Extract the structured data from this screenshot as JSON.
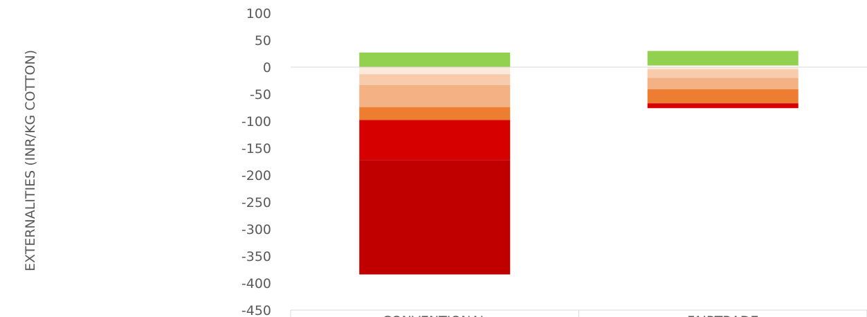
{
  "chart_data": {
    "type": "bar",
    "stacked": true,
    "ylabel": "EXTERNALITIES (INR/KG COTTON)",
    "ylim": [
      -450,
      100
    ],
    "yticks": [
      100,
      50,
      0,
      -50,
      -100,
      -150,
      -200,
      -250,
      -300,
      -350,
      -400,
      -450
    ],
    "categories": [
      "CONVENTIONAL",
      "FAIRTRADE"
    ],
    "grid": false,
    "legend": "none",
    "series": [
      {
        "color": "#92d050",
        "values": [
          [
            0,
            27
          ],
          [
            3,
            30
          ]
        ]
      },
      {
        "color": "#fde9d9",
        "values": [
          [
            0,
            -13
          ],
          [
            0,
            -4
          ]
        ]
      },
      {
        "color": "#f8cbad",
        "values": [
          [
            -13,
            -33
          ],
          [
            -4,
            -20
          ]
        ]
      },
      {
        "color": "#f4b183",
        "values": [
          [
            -33,
            -74
          ],
          [
            -20,
            -41
          ]
        ]
      },
      {
        "color": "#ed7d31",
        "values": [
          [
            -74,
            -98
          ],
          [
            -41,
            -67
          ]
        ]
      },
      {
        "color": "#d60000",
        "values": [
          [
            -98,
            -172
          ],
          [
            -67,
            -76
          ]
        ]
      },
      {
        "color": "#c00000",
        "values": [
          [
            -172,
            -384
          ],
          [
            -76,
            -76
          ]
        ]
      }
    ]
  }
}
